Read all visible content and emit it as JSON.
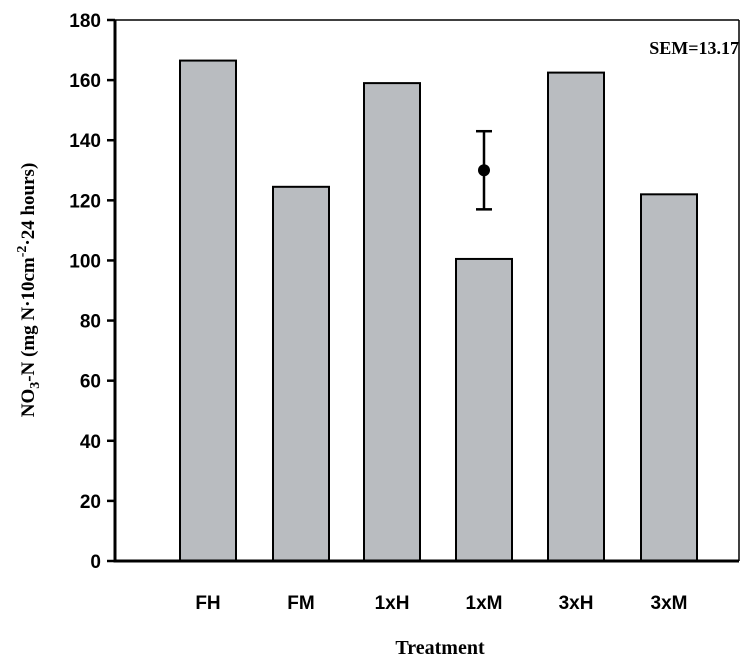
{
  "chart_data": {
    "type": "bar",
    "categories": [
      "FH",
      "FM",
      "1xH",
      "1xM",
      "3xH",
      "3xM"
    ],
    "values": [
      166.5,
      124.5,
      159,
      100.5,
      162.5,
      122
    ],
    "xlabel": "Treatment",
    "ylabel": {
      "prefix": "NO",
      "sub": "3",
      "mid": "-N (mg N·10cm",
      "sup": "-2",
      "suffix": "·24 hours)"
    },
    "ylim": [
      0,
      180
    ],
    "yticks": [
      0,
      20,
      40,
      60,
      80,
      100,
      120,
      140,
      160,
      180
    ],
    "annotation": "SEM=13.17",
    "error_marker": {
      "center": 130,
      "lower": 117,
      "upper": 143,
      "category": "1xM"
    },
    "bar_color": "#b9bcc0",
    "grid": false
  }
}
